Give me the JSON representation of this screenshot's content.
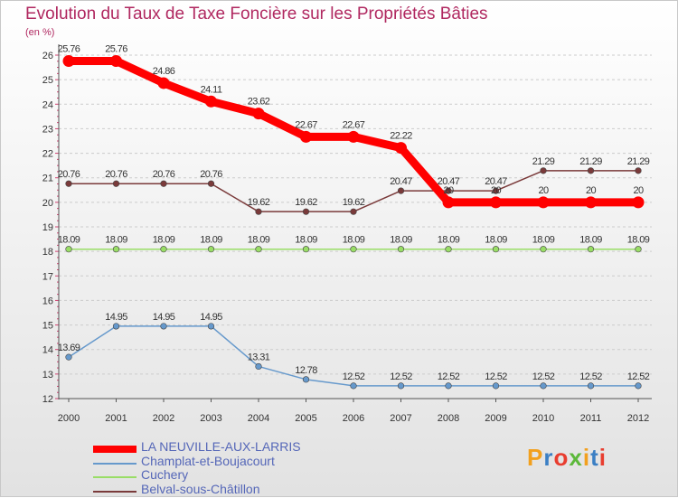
{
  "chart_data": {
    "type": "line",
    "title": "Evolution du Taux de Taxe Foncière sur les Propriétés Bâties",
    "ylabel": "(en %)",
    "xlabel": "",
    "x": [
      "2000",
      "2001",
      "2002",
      "2003",
      "2004",
      "2005",
      "2006",
      "2007",
      "2008",
      "2009",
      "2010",
      "2011",
      "2012"
    ],
    "ylim": [
      12,
      26
    ],
    "yticks": [
      12,
      13,
      14,
      15,
      16,
      17,
      18,
      19,
      20,
      21,
      22,
      23,
      24,
      25,
      26
    ],
    "grid": "horizontal dashed",
    "legend_position": "bottom-left",
    "series": [
      {
        "name": "LA NEUVILLE-AUX-LARRIS",
        "color": "#ff0000",
        "values": [
          25.76,
          25.76,
          24.86,
          24.11,
          23.62,
          22.67,
          22.67,
          22.22,
          20,
          20,
          20,
          20,
          20
        ],
        "labels": [
          "25.76",
          "25.76",
          "24.86",
          "24.11",
          "23.62",
          "22.67",
          "22.67",
          "22.22",
          "20",
          "20",
          "20",
          "20",
          "20"
        ]
      },
      {
        "name": "Champlat-et-Boujacourt",
        "color": "#6699cc",
        "values": [
          13.69,
          14.95,
          14.95,
          14.95,
          13.31,
          12.78,
          12.52,
          12.52,
          12.52,
          12.52,
          12.52,
          12.52,
          12.52
        ],
        "labels": [
          "13.69",
          "14.95",
          "14.95",
          "14.95",
          "13.31",
          "12.78",
          "12.52",
          "12.52",
          "12.52",
          "12.52",
          "12.52",
          "12.52",
          "12.52"
        ]
      },
      {
        "name": "Cuchery",
        "color": "#99dd66",
        "values": [
          18.09,
          18.09,
          18.09,
          18.09,
          18.09,
          18.09,
          18.09,
          18.09,
          18.09,
          18.09,
          18.09,
          18.09,
          18.09
        ],
        "labels": [
          "18.09",
          "18.09",
          "18.09",
          "18.09",
          "18.09",
          "18.09",
          "18.09",
          "18.09",
          "18.09",
          "18.09",
          "18.09",
          "18.09",
          "18.09"
        ]
      },
      {
        "name": "Belval-sous-Châtillon",
        "color": "#7a3a3a",
        "values": [
          20.76,
          20.76,
          20.76,
          20.76,
          19.62,
          19.62,
          19.62,
          20.47,
          20.47,
          20.47,
          21.29,
          21.29,
          21.29
        ],
        "labels": [
          "20.76",
          "20.76",
          "20.76",
          "20.76",
          "19.62",
          "19.62",
          "19.62",
          "20.47",
          "20.47",
          "20.47",
          "21.29",
          "21.29",
          "21.29"
        ]
      }
    ]
  },
  "logo": {
    "text": "Proxiti",
    "colors": [
      "#f2a01e",
      "#3b7fc4",
      "#e83d2f",
      "#5cb83a",
      "#f2a01e",
      "#3b7fc4",
      "#e83d2f"
    ]
  }
}
